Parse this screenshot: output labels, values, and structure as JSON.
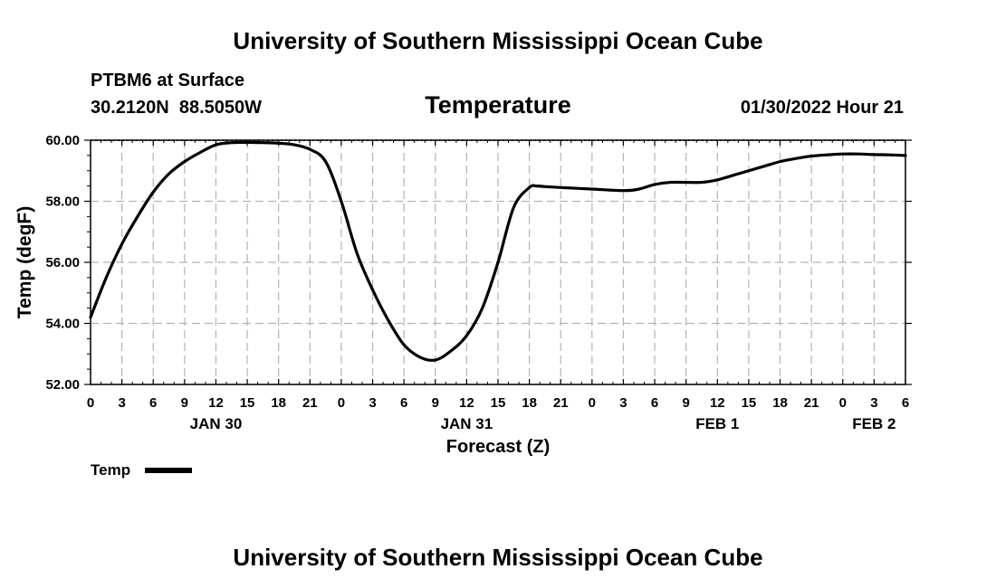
{
  "header": {
    "title": "University of Southern Mississippi Ocean Cube",
    "station": "PTBM6 at Surface",
    "coords": "30.2120N  88.5050W",
    "variable": "Temperature",
    "datetime": "01/30/2022 Hour 21"
  },
  "footer": {
    "title": "University of Southern Mississippi Ocean Cube"
  },
  "chart_data": {
    "type": "line",
    "xlabel": "Forecast (Z)",
    "ylabel": "Temp (degF)",
    "x_unit": "forecast hours from 00Z Jan 30",
    "xlim": [
      0,
      78
    ],
    "ylim": [
      52,
      60
    ],
    "y_ticks": [
      "52.00",
      "54.00",
      "56.00",
      "58.00",
      "60.00"
    ],
    "y_tick_values": [
      52,
      54,
      56,
      58,
      60
    ],
    "x_tick_hours": [
      0,
      3,
      6,
      9,
      12,
      15,
      18,
      21,
      24,
      27,
      30,
      33,
      36,
      39,
      42,
      45,
      48,
      51,
      54,
      57,
      60,
      63,
      66,
      69,
      72,
      75,
      78
    ],
    "x_tick_labels": [
      "0",
      "3",
      "6",
      "9",
      "12",
      "15",
      "18",
      "21",
      "0",
      "3",
      "6",
      "9",
      "12",
      "15",
      "18",
      "21",
      "0",
      "3",
      "6",
      "9",
      "12",
      "15",
      "18",
      "21",
      "0",
      "3",
      "6"
    ],
    "day_labels": [
      {
        "label": "JAN 30",
        "hour": 12
      },
      {
        "label": "JAN 31",
        "hour": 36
      },
      {
        "label": "FEB 1",
        "hour": 60
      },
      {
        "label": "FEB 2",
        "hour": 75
      }
    ],
    "grid": true,
    "legend": [
      {
        "name": "Temp",
        "placement": "bottom-left"
      }
    ],
    "series": [
      {
        "name": "Temp",
        "x": [
          0,
          1.5,
          3,
          4.5,
          6,
          7.5,
          9,
          10.5,
          12,
          13.5,
          15,
          16.5,
          18,
          19.5,
          21,
          22.5,
          24,
          25.5,
          27,
          28.5,
          30,
          31.5,
          33,
          34.5,
          36,
          37.5,
          39,
          40.5,
          42,
          42.7,
          43.5,
          45,
          48,
          51,
          52.5,
          54,
          55.5,
          57,
          58.5,
          60,
          61.5,
          63,
          64.5,
          66,
          67.5,
          69,
          70.5,
          72,
          73.5,
          75,
          76.5,
          78
        ],
        "values": [
          54.2,
          55.5,
          56.6,
          57.5,
          58.3,
          58.9,
          59.3,
          59.6,
          59.85,
          59.92,
          59.93,
          59.92,
          59.9,
          59.85,
          59.7,
          59.3,
          58.0,
          56.3,
          55.1,
          54.1,
          53.3,
          52.9,
          52.8,
          53.1,
          53.6,
          54.5,
          56.0,
          57.8,
          58.45,
          58.5,
          58.48,
          58.45,
          58.4,
          58.35,
          58.4,
          58.55,
          58.62,
          58.62,
          58.62,
          58.7,
          58.85,
          59.0,
          59.15,
          59.3,
          59.4,
          59.48,
          59.52,
          59.55,
          59.55,
          59.53,
          59.52,
          59.5
        ]
      }
    ]
  }
}
